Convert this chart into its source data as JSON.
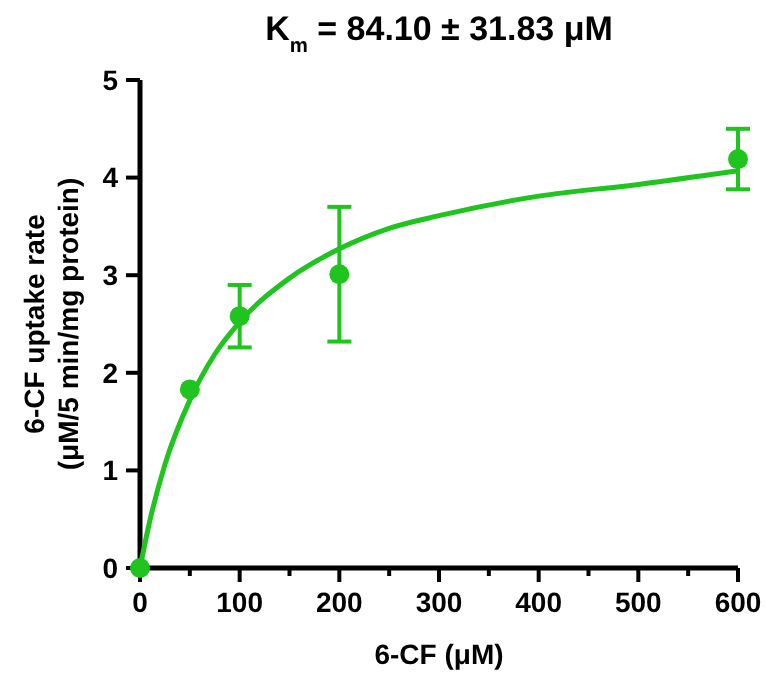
{
  "chart_data": {
    "type": "scatter",
    "title": "K$_{m}$ = 84.10 ± 31.83 μM",
    "xlabel": "6-CF (μM)",
    "ylabel": "6-CF uptake rate\n(μM/5 min/mg protein)",
    "xlim": [
      0,
      600
    ],
    "ylim": [
      0,
      5
    ],
    "xticks": [
      0,
      {
        "value": 50,
        "label": null
      },
      100,
      {
        "value": 150,
        "label": null
      },
      200,
      {
        "value": 250,
        "label": null
      },
      300,
      {
        "value": 350,
        "label": null
      },
      400,
      {
        "value": 450,
        "label": null
      },
      500,
      {
        "value": 550,
        "label": null
      },
      600
    ],
    "yticks": [
      0,
      1,
      2,
      3,
      4,
      5
    ],
    "grid": false,
    "marker": "circle",
    "series": [
      {
        "color": "#1fc41f",
        "x": [
          0,
          50,
          100,
          200,
          600
        ],
        "values": [
          0,
          1.83,
          2.58,
          3.01,
          4.19
        ],
        "errors": [
          null,
          null,
          0.32,
          0.69,
          0.31
        ]
      },
      {
        "type": "line",
        "color": "#1fc41f",
        "marker": "none",
        "line_style": "solid",
        "x": [
          0,
          10,
          25,
          50,
          75,
          100,
          150,
          200,
          250,
          300,
          400,
          500,
          600
        ],
        "values": [
          0,
          0.49,
          1.06,
          1.72,
          2.19,
          2.52,
          2.97,
          3.27,
          3.48,
          3.61,
          3.81,
          3.93,
          4.07
        ]
      }
    ]
  }
}
